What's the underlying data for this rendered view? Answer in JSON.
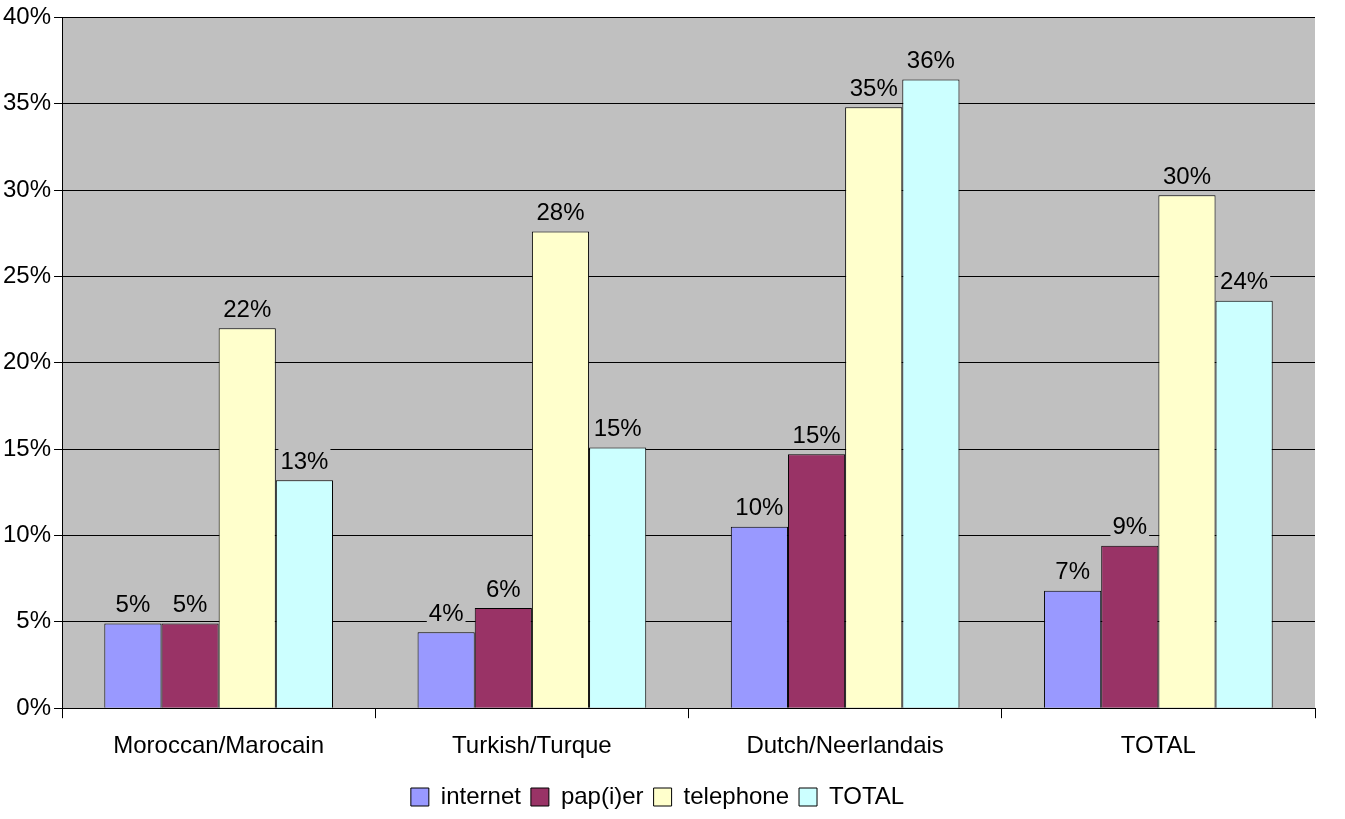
{
  "chart_data": {
    "type": "bar",
    "categories": [
      "Moroccan/Marocain",
      "Turkish/Turque",
      "Dutch/Neerlandais",
      "TOTAL"
    ],
    "series": [
      {
        "name": "internet",
        "color": "#9999ff",
        "values": [
          4.9,
          4.4,
          10.5,
          6.8
        ],
        "value_labels": [
          "5%",
          "4%",
          "10%",
          "7%"
        ]
      },
      {
        "name": "pap(i)er",
        "color": "#993366",
        "values": [
          4.9,
          5.8,
          14.7,
          9.4
        ],
        "value_labels": [
          "5%",
          "6%",
          "15%",
          "9%"
        ]
      },
      {
        "name": "telephone",
        "color": "#ffffcc",
        "values": [
          22.0,
          27.6,
          34.8,
          29.7
        ],
        "value_labels": [
          "22%",
          "28%",
          "35%",
          "30%"
        ]
      },
      {
        "name": "TOTAL",
        "color": "#ccffff",
        "values": [
          13.2,
          15.1,
          36.4,
          23.6
        ],
        "value_labels": [
          "13%",
          "15%",
          "36%",
          "24%"
        ]
      }
    ],
    "ylim": [
      0,
      40
    ],
    "yticks": [
      {
        "value": 0,
        "label": "0%"
      },
      {
        "value": 5,
        "label": "5%"
      },
      {
        "value": 10,
        "label": "10%"
      },
      {
        "value": 15,
        "label": "15%"
      },
      {
        "value": 20,
        "label": "20%"
      },
      {
        "value": 25,
        "label": "25%"
      },
      {
        "value": 30,
        "label": "30%"
      },
      {
        "value": 35,
        "label": "35%"
      },
      {
        "value": 40,
        "label": "40%"
      }
    ],
    "grid": "y",
    "legend": "bottom"
  }
}
